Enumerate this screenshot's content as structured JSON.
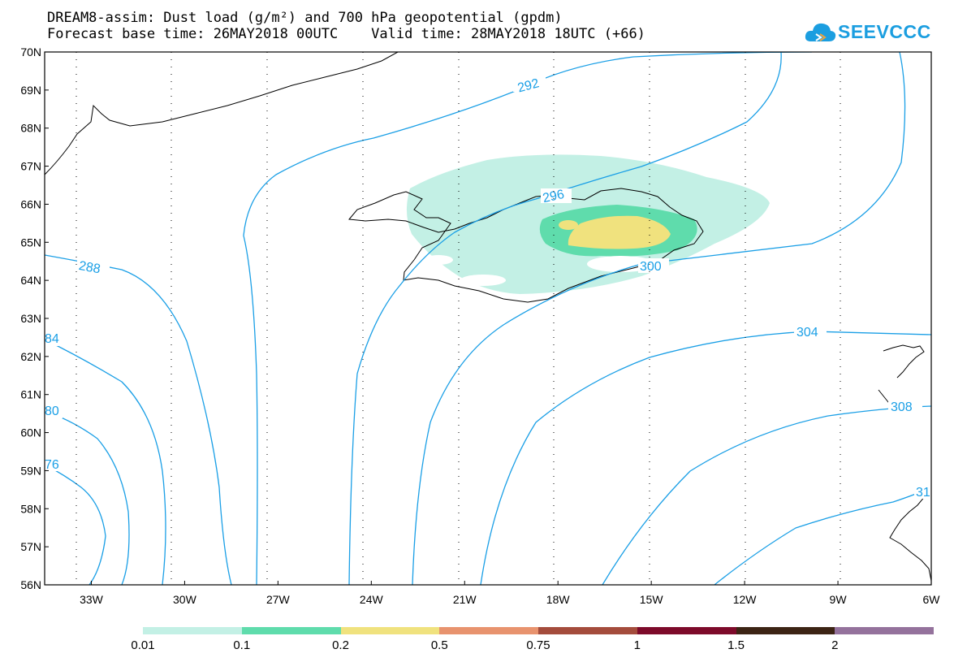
{
  "title": {
    "line1": "DREAM8-assim: Dust load (g/m²) and 700 hPa geopotential (gpdm)",
    "line2": "Forecast base time: 26MAY2018 00UTC    Valid time: 28MAY2018 18UTC (+66)"
  },
  "logo": {
    "text": "SEEVCCC",
    "icon": "cloud-icon",
    "color": "#1b9ee0"
  },
  "map": {
    "lat_ticks": [
      "70N",
      "69N",
      "68N",
      "67N",
      "66N",
      "65N",
      "64N",
      "63N",
      "62N",
      "61N",
      "60N",
      "59N",
      "58N",
      "57N",
      "56N"
    ],
    "lon_ticks": [
      "33W",
      "30W",
      "27W",
      "24W",
      "21W",
      "18W",
      "15W",
      "12W",
      "9W",
      "6W"
    ],
    "lat_range": [
      56,
      70
    ],
    "lon_range": [
      -34.5,
      -6
    ],
    "contour_color": "#1a9fe6",
    "contour_labels": [
      "292",
      "288",
      "84",
      "80",
      "76",
      "296",
      "300",
      "304",
      "308",
      "31"
    ]
  },
  "colorbar": {
    "colors": [
      "#c3f0e5",
      "#5fdcac",
      "#f0e27e",
      "#e8936e",
      "#a44c3c",
      "#7d0a2a",
      "#3c2414",
      "#94729c"
    ],
    "labels": [
      "0.01",
      "0.1",
      "0.2",
      "0.5",
      "0.75",
      "1",
      "1.5",
      "2"
    ]
  }
}
